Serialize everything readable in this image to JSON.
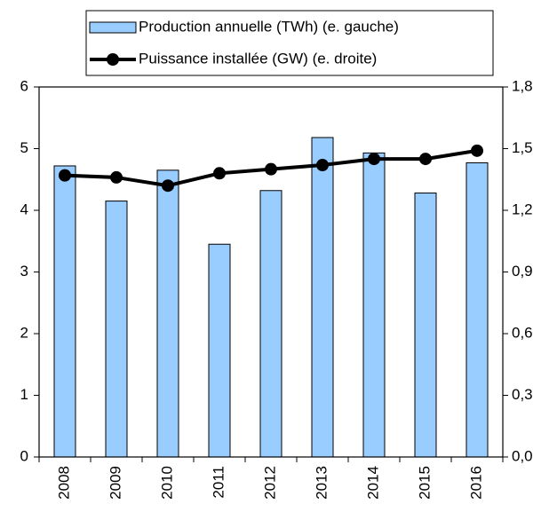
{
  "chart_data": {
    "type": "bar_line",
    "categories": [
      "2008",
      "2009",
      "2010",
      "2011",
      "2012",
      "2013",
      "2014",
      "2015",
      "2016"
    ],
    "series": [
      {
        "name": "Production annuelle (TWh) (e. gauche)",
        "type": "bar",
        "color": "#99ccff",
        "values": [
          4.72,
          4.15,
          4.65,
          3.45,
          4.32,
          5.18,
          4.93,
          4.28,
          4.77
        ]
      },
      {
        "name": "Puissance installée (GW) (e. droite)",
        "type": "line",
        "axis": "y2",
        "color": "#000000",
        "values": [
          1.37,
          1.36,
          1.32,
          1.38,
          1.4,
          1.42,
          1.45,
          1.45,
          1.49
        ]
      }
    ],
    "ylim": [
      0,
      6
    ],
    "yticks": [
      0,
      1,
      2,
      3,
      4,
      5,
      6
    ],
    "y2lim": [
      0,
      1.8
    ],
    "y2ticks": [
      {
        "value": 0,
        "label": "0,0"
      },
      {
        "value": 0.3,
        "label": "0,3"
      },
      {
        "value": 0.6,
        "label": "0,6"
      },
      {
        "value": 0.9,
        "label": "0,9"
      },
      {
        "value": 1.2,
        "label": "1,2"
      },
      {
        "value": 1.5,
        "label": "1,5"
      },
      {
        "value": 1.8,
        "label": "1,8"
      }
    ],
    "grid": false
  }
}
